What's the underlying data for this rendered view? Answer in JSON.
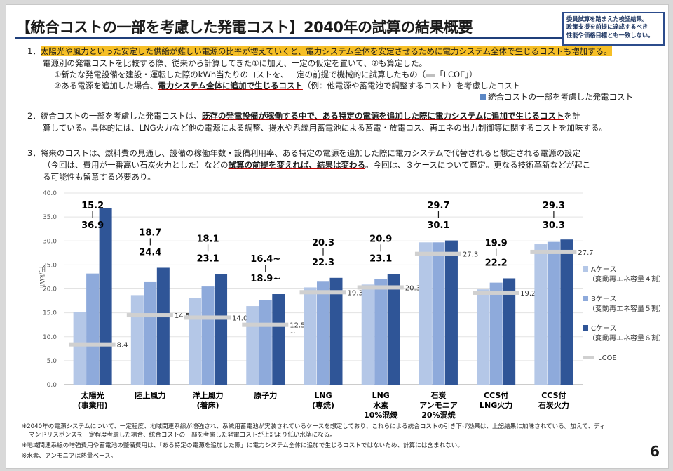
{
  "title": "【統合コストの一部を考慮した発電コスト】2040年の試算の結果概要",
  "note_box": [
    "委員試算を踏まえた検証結果。",
    "政策支援を前提に達成するべき",
    "性能や価格目標とも一致しない。"
  ],
  "paragraphs": {
    "p1_num": "1．",
    "p1_highlight": "太陽光や風力といった安定した供給が難しい電源の比率が増えていくと、電力システム全体を安定させるために電力システム全体で生じるコストも増加する。",
    "p1_line2": "電源別の発電コストを比較する際、従来から計算してきた①に加え、一定の仮定を置いて、②も算定した。",
    "p1_line3": "①新たな発電設備を建設・運転した際のkWh当たりのコストを、一定の前提で機械的に試算したもの（",
    "p1_line3_mark": "「LCOE」",
    "p1_line3_end": "）",
    "p1_line4_a": "②ある電源を追加した場合、",
    "p1_line4_u": "電力システム全体に追加で生じるコスト",
    "p1_line4_b": "（例：他電源や蓄電池で調整するコスト）を考慮したコスト",
    "p1_line4_legend": "統合コストの一部を考慮した発電コスト",
    "p2_num": "2．",
    "p2_a": "統合コストの一部を考慮した発電コストは、",
    "p2_u": "既存の発電設備が稼働する中で、ある特定の電源を追加した際に電力システムに追加で生じるコスト",
    "p2_b": "を計",
    "p2_line2": "算している。具体的には、LNG火力など他の電源による調整、揚水や系統用蓄電池による蓄電・放電ロス、再エネの出力制御等に関するコストを加味する。",
    "p3_num": "3．",
    "p3_a": "将来のコストは、燃料費の見通し、設備の稼働年数・設備利用率、ある特定の電源を追加した際に電力システムで代替されると想定される電源の設定",
    "p3_b": "（今回は、費用が一番高い石炭火力とした）などの",
    "p3_u": "試算の前提を変えれば、結果は変わる",
    "p3_c": "。今回は、３ケースについて算定。更なる技術革新などが起こ",
    "p3_line3": "る可能性も留意する必要あり。"
  },
  "chart_data": {
    "type": "bar",
    "ylabel": "円/kWh",
    "ylim": [
      0,
      40
    ],
    "yticks": [
      "0.0",
      "5.0",
      "10.0",
      "15.0",
      "20.0",
      "25.0",
      "30.0",
      "35.0",
      "40.0"
    ],
    "categories": [
      [
        "太陽光",
        "(事業用)"
      ],
      [
        "陸上風力"
      ],
      [
        "洋上風力",
        "(着床)"
      ],
      [
        "原子力"
      ],
      [
        "LNG",
        "(専焼)"
      ],
      [
        "LNG",
        "水素",
        "10%混焼"
      ],
      [
        "石炭",
        "アンモニア",
        "20%混焼"
      ],
      [
        "CCS付",
        "LNG火力"
      ],
      [
        "CCS付",
        "石炭火力"
      ]
    ],
    "series": [
      {
        "name": "Aケース",
        "sub": "（変動再エネ容量４割）",
        "color": "#b4c7e7",
        "values": [
          15.2,
          18.7,
          18.1,
          16.4,
          20.3,
          20.9,
          29.7,
          19.9,
          29.3
        ]
      },
      {
        "name": "Bケース",
        "sub": "（変動再エネ容量５割）",
        "color": "#8eaadb",
        "values": [
          23.2,
          21.4,
          20.5,
          17.6,
          21.5,
          22.0,
          29.7,
          21.3,
          29.8
        ]
      },
      {
        "name": "Cケース",
        "sub": "（変動再エネ容量６割）",
        "color": "#2f5597",
        "values": [
          36.9,
          24.4,
          23.1,
          18.9,
          22.3,
          23.1,
          30.1,
          22.2,
          30.3
        ]
      }
    ],
    "lcoe": {
      "name": "LCOE",
      "color": "#d0d0d0",
      "values": [
        8.4,
        14.5,
        14.0,
        12.5,
        19.3,
        20.3,
        27.3,
        19.2,
        27.7
      ],
      "labels": [
        "8.4",
        "14.5",
        "14.0",
        "12.5\n~",
        "19.3",
        "20.3",
        "27.3",
        "19.2",
        "27.7"
      ]
    },
    "annotations": [
      {
        "top": "15.2",
        "bottom": "36.9"
      },
      {
        "top": "18.7",
        "bottom": "24.4"
      },
      {
        "top": "18.1",
        "bottom": "23.1"
      },
      {
        "top": "16.4~",
        "bottom": "18.9~"
      },
      {
        "top": "20.3",
        "bottom": "22.3"
      },
      {
        "top": "20.9",
        "bottom": "23.1"
      },
      {
        "top": "29.7",
        "bottom": "30.1"
      },
      {
        "top": "19.9",
        "bottom": "22.2"
      },
      {
        "top": "29.3",
        "bottom": "30.3"
      }
    ]
  },
  "footnotes": [
    "※2040年の電源システムについて、一定程度、地域間連系線が増強され、系統用蓄電池が実装されているケースを想定しており、これらによる統合コストの引き下げ効果は、上記結果に加味されている。加えて、ディ",
    "マンドリスポンスを一定程度考慮した場合、統合コストの一部を考慮した発電コストが上記より低い水準になる。",
    "※地域間連系線の増強費用や蓄電池の整備費用は、「ある特定の電源を追加した際」に電力システム全体に追加で生じるコストではないため、計算には含まれない。",
    "※水素、アンモニアは熱量ベース。"
  ],
  "page_number": "6"
}
